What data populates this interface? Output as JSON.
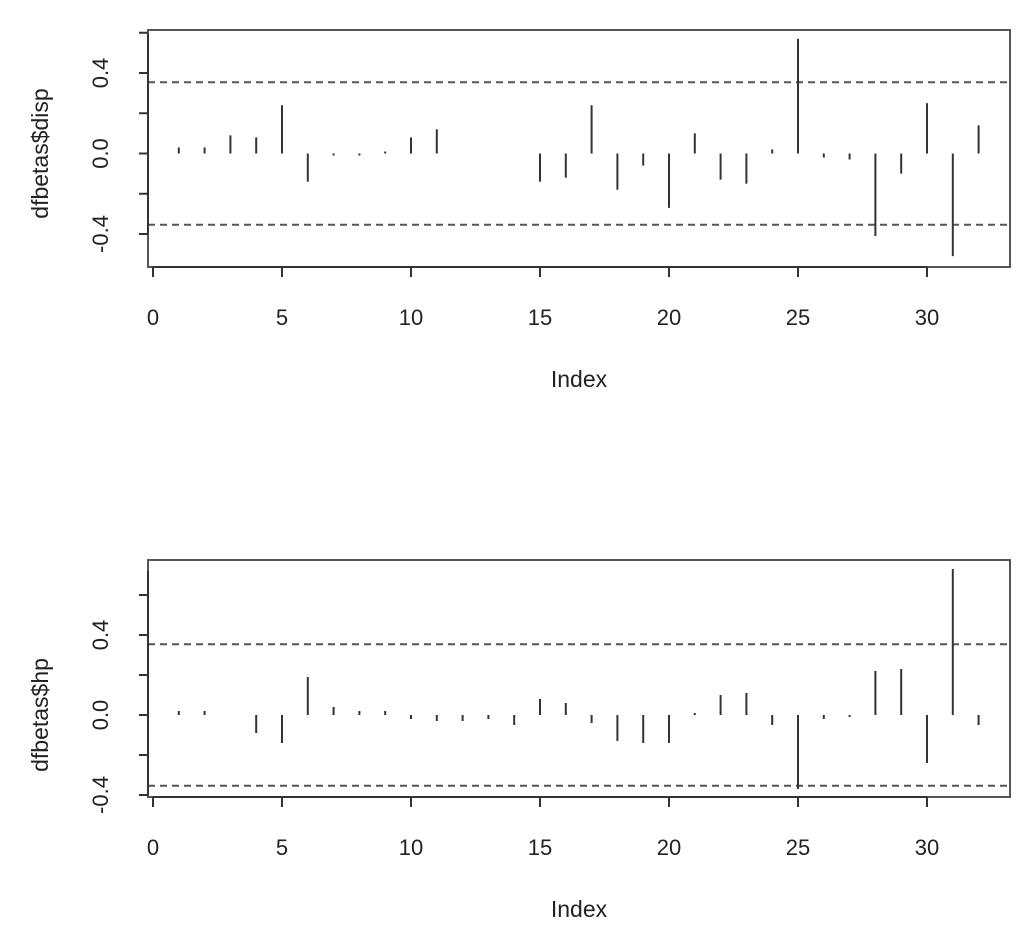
{
  "chart_data": [
    {
      "type": "bar",
      "style": "histogram-spikes",
      "xlabel": "Index",
      "ylabel": "dfbetas$disp",
      "xlim": [
        0,
        33
      ],
      "ylim": [
        -0.52,
        0.6
      ],
      "x_ticks": [
        0,
        5,
        10,
        15,
        20,
        25,
        30
      ],
      "y_ticks": [
        -0.4,
        0.0,
        0.4
      ],
      "y_tick_labels": [
        "-0.4",
        "0.0",
        "0.4"
      ],
      "reference_lines": [
        0.354,
        -0.354
      ],
      "reference_line_style": "dashed",
      "x": [
        1,
        2,
        3,
        4,
        5,
        6,
        7,
        8,
        9,
        10,
        11,
        12,
        13,
        14,
        15,
        16,
        17,
        18,
        19,
        20,
        21,
        22,
        23,
        24,
        25,
        26,
        27,
        28,
        29,
        30,
        31,
        32
      ],
      "values": [
        0.03,
        0.03,
        0.09,
        0.08,
        0.24,
        -0.14,
        -0.01,
        -0.01,
        0.01,
        0.08,
        0.12,
        0.0,
        0.0,
        0.0,
        -0.14,
        -0.12,
        0.24,
        -0.18,
        -0.06,
        -0.27,
        0.1,
        -0.13,
        -0.15,
        0.02,
        0.57,
        -0.02,
        -0.03,
        -0.41,
        -0.1,
        0.25,
        -0.51,
        0.14
      ],
      "grid": false,
      "color": "#333333"
    },
    {
      "type": "bar",
      "style": "histogram-spikes",
      "xlabel": "Index",
      "ylabel": "dfbetas$hp",
      "xlim": [
        0,
        33
      ],
      "ylim": [
        -0.38,
        0.72
      ],
      "x_ticks": [
        0,
        5,
        10,
        15,
        20,
        25,
        30
      ],
      "y_ticks": [
        -0.4,
        0.0,
        0.4
      ],
      "y_tick_labels": [
        "-0.4",
        "0.0",
        "0.4"
      ],
      "reference_lines": [
        0.354,
        -0.354
      ],
      "reference_line_style": "dashed",
      "x": [
        1,
        2,
        3,
        4,
        5,
        6,
        7,
        8,
        9,
        10,
        11,
        12,
        13,
        14,
        15,
        16,
        17,
        18,
        19,
        20,
        21,
        22,
        23,
        24,
        25,
        26,
        27,
        28,
        29,
        30,
        31,
        32
      ],
      "values": [
        0.02,
        0.02,
        0.0,
        -0.09,
        -0.14,
        0.19,
        0.04,
        0.02,
        0.02,
        -0.02,
        -0.03,
        -0.03,
        -0.02,
        -0.05,
        0.08,
        0.06,
        -0.04,
        -0.13,
        -0.14,
        -0.14,
        0.01,
        0.1,
        0.11,
        -0.05,
        -0.37,
        -0.02,
        -0.01,
        0.22,
        0.23,
        -0.24,
        0.73,
        -0.05
      ],
      "grid": false,
      "color": "#333333"
    }
  ]
}
